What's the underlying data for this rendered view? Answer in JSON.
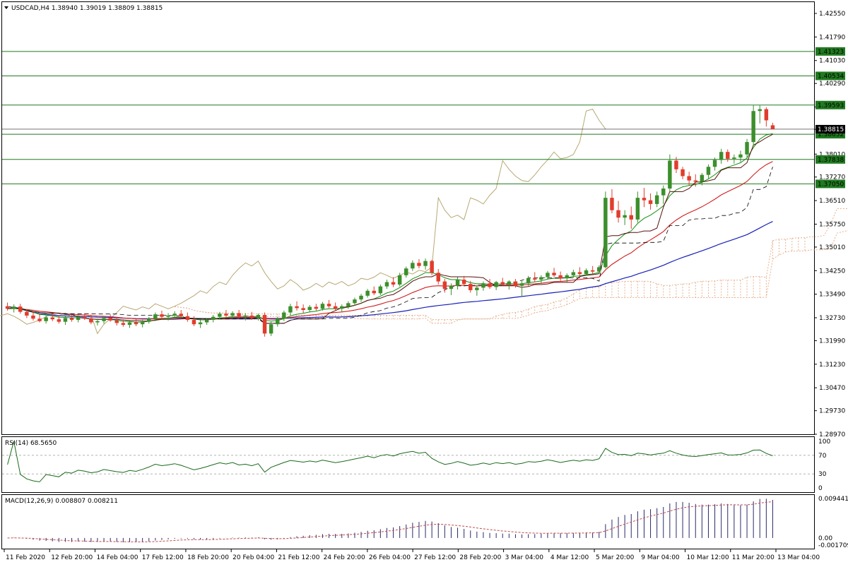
{
  "header": {
    "symbol_line": "USDCAD,H4  1.38940 1.39019 1.38809 1.38815",
    "dropdown_icon": "triangle-down-icon"
  },
  "colors": {
    "bull": "#3c8f2c",
    "bear": "#e23c2c",
    "ma_fast": "#0f8f0f",
    "ma_mid": "#d11e1e",
    "ma_slow": "#1720b8",
    "tenkan": "#5a0f0f",
    "chikou": "#b8a873",
    "hline": "#207a20",
    "tag_bg": "#207a20",
    "cloud": "#e7b08d",
    "rsi": "#1a6a1a",
    "macd_bar": "#2a2a6a",
    "macd_signal": "#c04a4a"
  },
  "price_axis": {
    "min": 1.2897,
    "max": 1.4255,
    "ticks": [
      "1.42550",
      "1.41790",
      "1.41030",
      "1.40290",
      "1.39530",
      "1.38810",
      "1.38010",
      "1.37270",
      "1.36510",
      "1.35750",
      "1.35010",
      "1.34250",
      "1.33490",
      "1.32730",
      "1.31990",
      "1.31230",
      "1.30470",
      "1.29730",
      "1.28970"
    ]
  },
  "horizontal_levels": [
    {
      "price": 1.41323,
      "label": "1.41323"
    },
    {
      "price": 1.40534,
      "label": "1.40534"
    },
    {
      "price": 1.39593,
      "label": "1.39593"
    },
    {
      "price": 1.38652,
      "label": "1.38652"
    },
    {
      "price": 1.37838,
      "label": "1.37838"
    },
    {
      "price": 1.3705,
      "label": "1.37050"
    }
  ],
  "current_price": {
    "price": 1.38815,
    "label": "1.38815"
  },
  "time_axis": {
    "labels": [
      "11 Feb 2020",
      "12 Feb 20:00",
      "14 Feb 04:00",
      "17 Feb 12:00",
      "18 Feb 20:00",
      "20 Feb 04:00",
      "21 Feb 12:00",
      "24 Feb 20:00",
      "26 Feb 04:00",
      "27 Feb 12:00",
      "28 Feb 20:00",
      "3 Mar 04:00",
      "4 Mar 12:00",
      "5 Mar 20:00",
      "9 Mar 04:00",
      "10 Mar 12:00",
      "11 Mar 20:00",
      "13 Mar 04:00"
    ]
  },
  "rsi": {
    "title": "RSI(14) 68.5650",
    "levels": [
      "100",
      "70",
      "30",
      "0"
    ]
  },
  "macd": {
    "title": "MACD(12,26,9) 0.008807 0.008211",
    "levels": [
      "0.009441",
      "0.00",
      "-0.001709"
    ]
  },
  "chart_data": {
    "type": "candlestick",
    "symbol": "USDCAD",
    "timeframe": "H4",
    "ylim": [
      1.2897,
      1.4255
    ],
    "ohlc_last": {
      "open": 1.3894,
      "high": 1.39019,
      "low": 1.38809,
      "close": 1.38815
    },
    "candles": [
      [
        1.331,
        1.3322,
        1.3296,
        1.3302
      ],
      [
        1.3302,
        1.3316,
        1.329,
        1.3309
      ],
      [
        1.3309,
        1.3318,
        1.3286,
        1.3292
      ],
      [
        1.3292,
        1.33,
        1.3272,
        1.328
      ],
      [
        1.328,
        1.3292,
        1.3264,
        1.327
      ],
      [
        1.327,
        1.3284,
        1.3258,
        1.3262
      ],
      [
        1.3262,
        1.328,
        1.3254,
        1.3274
      ],
      [
        1.3274,
        1.3286,
        1.3262,
        1.3268
      ],
      [
        1.3268,
        1.328,
        1.3254,
        1.326
      ],
      [
        1.326,
        1.3278,
        1.325,
        1.3272
      ],
      [
        1.3272,
        1.3284,
        1.326,
        1.3266
      ],
      [
        1.3266,
        1.328,
        1.3258,
        1.3276
      ],
      [
        1.3276,
        1.3288,
        1.3266,
        1.327
      ],
      [
        1.327,
        1.3282,
        1.3252,
        1.3258
      ],
      [
        1.3258,
        1.327,
        1.3248,
        1.3262
      ],
      [
        1.3262,
        1.3278,
        1.3254,
        1.3272
      ],
      [
        1.3272,
        1.3284,
        1.326,
        1.3264
      ],
      [
        1.3264,
        1.3276,
        1.3248,
        1.3256
      ],
      [
        1.3256,
        1.3268,
        1.3244,
        1.325
      ],
      [
        1.325,
        1.3264,
        1.324,
        1.3258
      ],
      [
        1.3258,
        1.327,
        1.3246,
        1.3252
      ],
      [
        1.3252,
        1.3266,
        1.3242,
        1.326
      ],
      [
        1.326,
        1.3276,
        1.3254,
        1.327
      ],
      [
        1.327,
        1.329,
        1.3262,
        1.3284
      ],
      [
        1.3284,
        1.3296,
        1.327,
        1.3276
      ],
      [
        1.3276,
        1.3288,
        1.3264,
        1.328
      ],
      [
        1.328,
        1.3294,
        1.3272,
        1.3286
      ],
      [
        1.3286,
        1.3298,
        1.3272,
        1.3278
      ],
      [
        1.3278,
        1.329,
        1.326,
        1.3266
      ],
      [
        1.3266,
        1.3278,
        1.3246,
        1.3252
      ],
      [
        1.3252,
        1.3266,
        1.324,
        1.3258
      ],
      [
        1.3258,
        1.3272,
        1.325,
        1.3266
      ],
      [
        1.3266,
        1.3282,
        1.3258,
        1.3276
      ],
      [
        1.3276,
        1.3292,
        1.3268,
        1.3286
      ],
      [
        1.3286,
        1.3298,
        1.3272,
        1.328
      ],
      [
        1.328,
        1.3294,
        1.327,
        1.3288
      ],
      [
        1.3288,
        1.3298,
        1.3272,
        1.3276
      ],
      [
        1.3276,
        1.3288,
        1.3264,
        1.328
      ],
      [
        1.328,
        1.3292,
        1.3266,
        1.3272
      ],
      [
        1.3272,
        1.3286,
        1.3264,
        1.3282
      ],
      [
        1.3282,
        1.329,
        1.3212,
        1.3222
      ],
      [
        1.3222,
        1.326,
        1.3214,
        1.3252
      ],
      [
        1.3252,
        1.3276,
        1.3244,
        1.327
      ],
      [
        1.327,
        1.3296,
        1.3262,
        1.329
      ],
      [
        1.329,
        1.3318,
        1.3282,
        1.331
      ],
      [
        1.331,
        1.3326,
        1.3296,
        1.3304
      ],
      [
        1.3304,
        1.3316,
        1.3288,
        1.3298
      ],
      [
        1.3298,
        1.3314,
        1.329,
        1.3308
      ],
      [
        1.3308,
        1.3318,
        1.3296,
        1.3302
      ],
      [
        1.3302,
        1.3324,
        1.3296,
        1.3318
      ],
      [
        1.3318,
        1.333,
        1.3304,
        1.331
      ],
      [
        1.331,
        1.3322,
        1.3296,
        1.3302
      ],
      [
        1.3302,
        1.3316,
        1.3292,
        1.331
      ],
      [
        1.331,
        1.3326,
        1.3302,
        1.332
      ],
      [
        1.332,
        1.3338,
        1.3312,
        1.3332
      ],
      [
        1.3332,
        1.335,
        1.3324,
        1.3344
      ],
      [
        1.3344,
        1.3366,
        1.3338,
        1.336
      ],
      [
        1.336,
        1.3374,
        1.3346,
        1.3352
      ],
      [
        1.3352,
        1.338,
        1.3346,
        1.3374
      ],
      [
        1.3374,
        1.3396,
        1.3366,
        1.3388
      ],
      [
        1.3388,
        1.3404,
        1.3372,
        1.338
      ],
      [
        1.338,
        1.3418,
        1.3374,
        1.341
      ],
      [
        1.341,
        1.3438,
        1.3402,
        1.3432
      ],
      [
        1.3432,
        1.3458,
        1.3424,
        1.345
      ],
      [
        1.345,
        1.3462,
        1.3432,
        1.344
      ],
      [
        1.344,
        1.3464,
        1.3428,
        1.3456
      ],
      [
        1.3456,
        1.346,
        1.341,
        1.3418
      ],
      [
        1.3418,
        1.343,
        1.338,
        1.339
      ],
      [
        1.339,
        1.3398,
        1.3354,
        1.3366
      ],
      [
        1.3366,
        1.3384,
        1.3346,
        1.3376
      ],
      [
        1.3376,
        1.3404,
        1.3364,
        1.3396
      ],
      [
        1.3396,
        1.3408,
        1.3374,
        1.3382
      ],
      [
        1.3382,
        1.3392,
        1.3354,
        1.3362
      ],
      [
        1.3362,
        1.3378,
        1.3344,
        1.337
      ],
      [
        1.337,
        1.339,
        1.336,
        1.3384
      ],
      [
        1.3384,
        1.3398,
        1.3366,
        1.3372
      ],
      [
        1.3372,
        1.3392,
        1.3362,
        1.3388
      ],
      [
        1.3388,
        1.3402,
        1.3376,
        1.338
      ],
      [
        1.338,
        1.3394,
        1.3364,
        1.339
      ],
      [
        1.339,
        1.3398,
        1.337,
        1.3376
      ],
      [
        1.3376,
        1.3392,
        1.334,
        1.3384
      ],
      [
        1.3384,
        1.3408,
        1.3376,
        1.34
      ],
      [
        1.34,
        1.342,
        1.3388,
        1.3396
      ],
      [
        1.3396,
        1.341,
        1.3384,
        1.3404
      ],
      [
        1.3404,
        1.3424,
        1.3396,
        1.3418
      ],
      [
        1.3418,
        1.3434,
        1.3404,
        1.341
      ],
      [
        1.341,
        1.3422,
        1.3392,
        1.34
      ],
      [
        1.34,
        1.3416,
        1.3388,
        1.341
      ],
      [
        1.341,
        1.3428,
        1.3402,
        1.342
      ],
      [
        1.342,
        1.3436,
        1.3408,
        1.3414
      ],
      [
        1.3414,
        1.3432,
        1.3408,
        1.3426
      ],
      [
        1.3426,
        1.344,
        1.3414,
        1.3422
      ],
      [
        1.3422,
        1.3442,
        1.3414,
        1.3436
      ],
      [
        1.3436,
        1.368,
        1.3432,
        1.366
      ],
      [
        1.366,
        1.3688,
        1.361,
        1.362
      ],
      [
        1.362,
        1.365,
        1.358,
        1.3596
      ],
      [
        1.3596,
        1.362,
        1.3572,
        1.3604
      ],
      [
        1.3604,
        1.3632,
        1.356,
        1.359
      ],
      [
        1.359,
        1.368,
        1.358,
        1.366
      ],
      [
        1.366,
        1.3692,
        1.363,
        1.3652
      ],
      [
        1.3652,
        1.3674,
        1.3622,
        1.364
      ],
      [
        1.364,
        1.368,
        1.363,
        1.3668
      ],
      [
        1.3668,
        1.37,
        1.364,
        1.369
      ],
      [
        1.369,
        1.38,
        1.368,
        1.378
      ],
      [
        1.378,
        1.3792,
        1.374,
        1.3752
      ],
      [
        1.3752,
        1.376,
        1.372,
        1.373
      ],
      [
        1.373,
        1.3744,
        1.37,
        1.3716
      ],
      [
        1.3716,
        1.3736,
        1.3696,
        1.3712
      ],
      [
        1.3712,
        1.374,
        1.37,
        1.3734
      ],
      [
        1.3734,
        1.3768,
        1.3722,
        1.376
      ],
      [
        1.376,
        1.379,
        1.3748,
        1.3782
      ],
      [
        1.3782,
        1.3818,
        1.377,
        1.3808
      ],
      [
        1.3808,
        1.3816,
        1.3776,
        1.3786
      ],
      [
        1.3786,
        1.38,
        1.377,
        1.379
      ],
      [
        1.379,
        1.3812,
        1.3776,
        1.38
      ],
      [
        1.38,
        1.385,
        1.379,
        1.384
      ],
      [
        1.384,
        1.396,
        1.3826,
        1.394
      ],
      [
        1.394,
        1.3958,
        1.39,
        1.3946
      ],
      [
        1.3946,
        1.3952,
        1.389,
        1.391
      ],
      [
        1.3894,
        1.3902,
        1.3881,
        1.3882
      ]
    ]
  }
}
